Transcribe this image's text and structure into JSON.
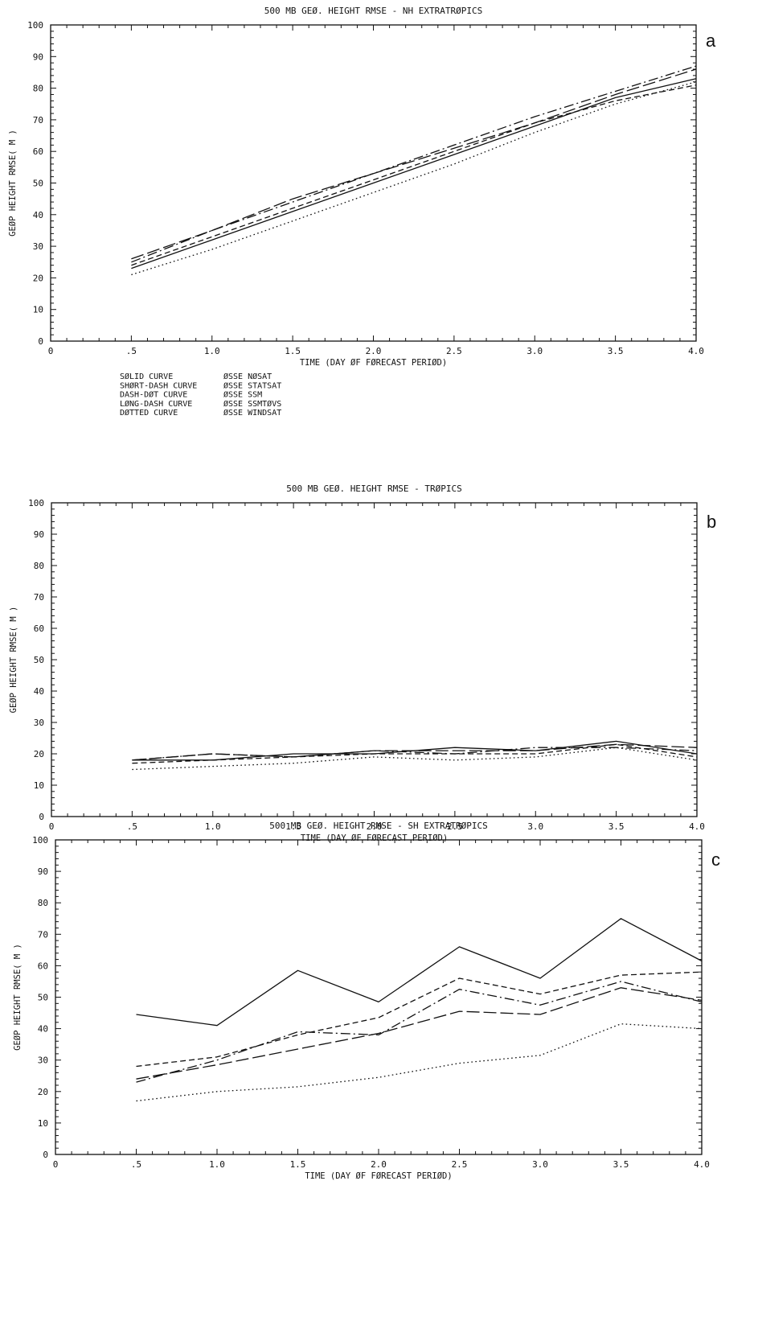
{
  "chart_data": [
    {
      "type": "line",
      "panel_letter": "a",
      "title": "500 MB GEØ. HEIGHT RMSE - NH EXTRATRØPICS",
      "xlabel": "TIME (DAY ØF FØRECAST PERIØD)",
      "ylabel": "GEØP HEIGHT RMSE( M )",
      "xlim": [
        0,
        4.0
      ],
      "ylim": [
        0,
        100
      ],
      "x_tick_labels": [
        "0",
        ".5",
        "1.0",
        "1.5",
        "2.0",
        "2.5",
        "3.0",
        "3.5",
        "4.0"
      ],
      "y_tick_labels": [
        "0",
        "10",
        "20",
        "30",
        "40",
        "50",
        "60",
        "70",
        "80",
        "90",
        "100"
      ],
      "x": [
        0.5,
        1.0,
        1.5,
        2.0,
        2.5,
        3.0,
        3.5,
        4.0
      ],
      "series": [
        {
          "style": "solid",
          "values": [
            23,
            32,
            41,
            50,
            59,
            68,
            77,
            83
          ]
        },
        {
          "style": "short-dash",
          "values": [
            24,
            33,
            42,
            51,
            60,
            69,
            76,
            81
          ]
        },
        {
          "style": "dash-dot",
          "values": [
            25,
            35,
            44,
            53,
            62,
            71,
            79,
            87
          ]
        },
        {
          "style": "long-dash",
          "values": [
            26,
            35,
            45,
            53,
            61,
            69,
            78,
            86
          ]
        },
        {
          "style": "dotted",
          "values": [
            21,
            29,
            38,
            47,
            56,
            66,
            75,
            82
          ]
        }
      ],
      "legend": [
        {
          "style": "solid",
          "label": "SØLID CURVE",
          "experiment": "ØSSE NØSAT"
        },
        {
          "style": "short-dash",
          "label": "SHØRT-DASH CURVE",
          "experiment": "ØSSE STATSAT"
        },
        {
          "style": "dash-dot",
          "label": "DASH-DØT CURVE",
          "experiment": "ØSSE SSM"
        },
        {
          "style": "long-dash",
          "label": "LØNG-DASH CURVE",
          "experiment": "ØSSE SSMTØVS"
        },
        {
          "style": "dotted",
          "label": "DØTTED CURVE",
          "experiment": "ØSSE WINDSAT"
        }
      ]
    },
    {
      "type": "line",
      "panel_letter": "b",
      "title": "500 MB GEØ. HEIGHT RMSE - TRØPICS",
      "xlabel": "TIME (DAY ØF FØRECAST PERIØD)",
      "ylabel": "GEØP HEIGHT RMSE( M )",
      "xlim": [
        0,
        4.0
      ],
      "ylim": [
        0,
        100
      ],
      "x_tick_labels": [
        "0",
        ".5",
        "1.0",
        "1.5",
        "2.0",
        "2.5",
        "3.0",
        "3.5",
        "4.0"
      ],
      "y_tick_labels": [
        "0",
        "10",
        "20",
        "30",
        "40",
        "50",
        "60",
        "70",
        "80",
        "90",
        "100"
      ],
      "x": [
        0.5,
        1.0,
        1.5,
        2.0,
        2.5,
        3.0,
        3.5,
        4.0
      ],
      "series": [
        {
          "style": "solid",
          "values": [
            18,
            18,
            20,
            20,
            22,
            21,
            24,
            20
          ]
        },
        {
          "style": "short-dash",
          "values": [
            17,
            18,
            19,
            20,
            20,
            20,
            23,
            19
          ]
        },
        {
          "style": "dash-dot",
          "values": [
            18,
            20,
            19,
            21,
            20,
            22,
            22,
            21
          ]
        },
        {
          "style": "long-dash",
          "values": [
            18,
            20,
            19,
            21,
            21,
            21,
            23,
            22
          ]
        },
        {
          "style": "dotted",
          "values": [
            15,
            16,
            17,
            19,
            18,
            19,
            22,
            18
          ]
        }
      ]
    },
    {
      "type": "line",
      "panel_letter": "c",
      "title": "500 MB GEØ. HEIGHT RMSE - SH EXTRATRØPICS",
      "xlabel": "TIME (DAY ØF FØRECAST PERIØD)",
      "ylabel": "GEØP HEIGHT RMSE( M )",
      "xlim": [
        0,
        4.0
      ],
      "ylim": [
        0,
        100
      ],
      "x_tick_labels": [
        "0",
        ".5",
        "1.0",
        "1.5",
        "2.0",
        "2.5",
        "3.0",
        "3.5",
        "4.0"
      ],
      "y_tick_labels": [
        "0",
        "10",
        "20",
        "30",
        "40",
        "50",
        "60",
        "70",
        "80",
        "90",
        "100"
      ],
      "x": [
        0.5,
        1.0,
        1.5,
        2.0,
        2.5,
        3.0,
        3.5,
        4.0
      ],
      "series": [
        {
          "style": "solid",
          "values": [
            44.5,
            41,
            58.5,
            48.5,
            66,
            56,
            75,
            61.5
          ]
        },
        {
          "style": "short-dash",
          "values": [
            28,
            31,
            38,
            43.5,
            56,
            51,
            57,
            58
          ]
        },
        {
          "style": "dash-dot",
          "values": [
            23,
            30,
            39,
            38,
            52.5,
            47.5,
            55,
            48.5
          ]
        },
        {
          "style": "long-dash",
          "values": [
            24,
            28.5,
            33.5,
            38.5,
            45.5,
            44.5,
            53,
            49
          ]
        },
        {
          "style": "dotted",
          "values": [
            17,
            20,
            21.5,
            24.5,
            29,
            31.5,
            41.5,
            40
          ]
        }
      ]
    }
  ]
}
